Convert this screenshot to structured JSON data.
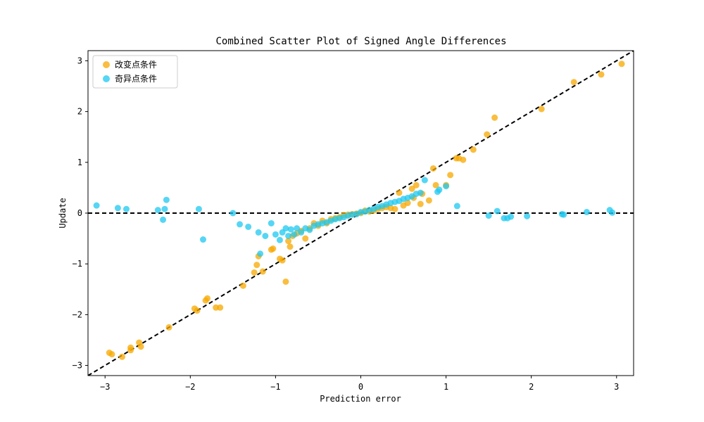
{
  "chart_data": {
    "type": "scatter",
    "title": "Combined Scatter Plot of Signed Angle Differences",
    "xlabel": "Prediction error",
    "ylabel": "Update",
    "xlim": [
      -3.2,
      3.2
    ],
    "ylim": [
      -3.2,
      3.2
    ],
    "xticks": [
      -3,
      -2,
      -1,
      0,
      1,
      2,
      3
    ],
    "yticks": [
      -3,
      -2,
      -1,
      0,
      1,
      2,
      3
    ],
    "tick_labels": [
      "−3",
      "−2",
      "−1",
      "0",
      "1",
      "2",
      "3"
    ],
    "grid": false,
    "legend_position": "top-left",
    "reference_lines": [
      {
        "type": "diagonal",
        "style": "dashed",
        "color": "#000000"
      },
      {
        "type": "horizontal",
        "y": 0,
        "style": "dashed",
        "color": "#000000"
      }
    ],
    "series": [
      {
        "name": "改变点条件",
        "color": "#f7a800",
        "points": [
          [
            -2.95,
            -2.75
          ],
          [
            -2.92,
            -2.78
          ],
          [
            -2.8,
            -2.83
          ],
          [
            -2.7,
            -2.65
          ],
          [
            -2.7,
            -2.7
          ],
          [
            -2.6,
            -2.55
          ],
          [
            -2.58,
            -2.63
          ],
          [
            -2.25,
            -2.25
          ],
          [
            -1.95,
            -1.88
          ],
          [
            -1.92,
            -1.92
          ],
          [
            -1.82,
            -1.72
          ],
          [
            -1.8,
            -1.68
          ],
          [
            -1.7,
            -1.86
          ],
          [
            -1.65,
            -1.86
          ],
          [
            -1.38,
            -1.43
          ],
          [
            -1.25,
            -1.17
          ],
          [
            -1.22,
            -1.02
          ],
          [
            -1.2,
            -0.85
          ],
          [
            -1.15,
            -1.15
          ],
          [
            -1.05,
            -0.72
          ],
          [
            -1.03,
            -0.7
          ],
          [
            -0.95,
            -0.9
          ],
          [
            -0.92,
            -0.93
          ],
          [
            -0.88,
            -1.35
          ],
          [
            -0.85,
            -0.55
          ],
          [
            -0.83,
            -0.66
          ],
          [
            -0.8,
            -0.45
          ],
          [
            -0.75,
            -0.4
          ],
          [
            -0.7,
            -0.35
          ],
          [
            -0.65,
            -0.5
          ],
          [
            -0.6,
            -0.3
          ],
          [
            -0.55,
            -0.2
          ],
          [
            -0.5,
            -0.25
          ],
          [
            -0.45,
            -0.15
          ],
          [
            -0.4,
            -0.2
          ],
          [
            -0.35,
            -0.12
          ],
          [
            -0.3,
            -0.1
          ],
          [
            -0.25,
            -0.08
          ],
          [
            -0.2,
            -0.04
          ],
          [
            -0.15,
            -0.03
          ],
          [
            -0.1,
            -0.02
          ],
          [
            -0.05,
            -0.01
          ],
          [
            0.0,
            0.0
          ],
          [
            0.05,
            0.05
          ],
          [
            0.1,
            0.03
          ],
          [
            0.15,
            0.05
          ],
          [
            0.2,
            0.08
          ],
          [
            0.25,
            0.1
          ],
          [
            0.3,
            0.12
          ],
          [
            0.35,
            0.1
          ],
          [
            0.4,
            0.08
          ],
          [
            0.45,
            0.4
          ],
          [
            0.5,
            0.15
          ],
          [
            0.55,
            0.2
          ],
          [
            0.6,
            0.48
          ],
          [
            0.62,
            0.3
          ],
          [
            0.65,
            0.55
          ],
          [
            0.7,
            0.18
          ],
          [
            0.72,
            0.38
          ],
          [
            0.8,
            0.25
          ],
          [
            0.85,
            0.88
          ],
          [
            0.88,
            0.55
          ],
          [
            1.0,
            0.55
          ],
          [
            1.05,
            0.75
          ],
          [
            1.12,
            1.08
          ],
          [
            1.15,
            1.08
          ],
          [
            1.2,
            1.05
          ],
          [
            1.32,
            1.25
          ],
          [
            1.48,
            1.55
          ],
          [
            1.57,
            1.88
          ],
          [
            2.12,
            2.05
          ],
          [
            2.5,
            2.58
          ],
          [
            2.82,
            2.73
          ],
          [
            3.06,
            2.94
          ]
        ]
      },
      {
        "name": "奇异点条件",
        "color": "#1ec8f0",
        "points": [
          [
            -3.1,
            0.15
          ],
          [
            -2.85,
            0.1
          ],
          [
            -2.75,
            0.08
          ],
          [
            -2.38,
            0.06
          ],
          [
            -2.32,
            -0.13
          ],
          [
            -2.3,
            0.08
          ],
          [
            -2.28,
            0.26
          ],
          [
            -1.9,
            0.08
          ],
          [
            -1.85,
            -0.52
          ],
          [
            -1.5,
            0.0
          ],
          [
            -1.42,
            -0.22
          ],
          [
            -1.32,
            -0.27
          ],
          [
            -1.2,
            -0.38
          ],
          [
            -1.18,
            -0.8
          ],
          [
            -1.12,
            -0.45
          ],
          [
            -1.05,
            -0.2
          ],
          [
            -1.0,
            -0.42
          ],
          [
            -0.95,
            -0.53
          ],
          [
            -0.92,
            -0.38
          ],
          [
            -0.88,
            -0.3
          ],
          [
            -0.85,
            -0.45
          ],
          [
            -0.82,
            -0.32
          ],
          [
            -0.78,
            -0.42
          ],
          [
            -0.75,
            -0.3
          ],
          [
            -0.7,
            -0.38
          ],
          [
            -0.65,
            -0.3
          ],
          [
            -0.6,
            -0.33
          ],
          [
            -0.55,
            -0.25
          ],
          [
            -0.5,
            -0.22
          ],
          [
            -0.45,
            -0.2
          ],
          [
            -0.4,
            -0.18
          ],
          [
            -0.35,
            -0.15
          ],
          [
            -0.3,
            -0.12
          ],
          [
            -0.25,
            -0.1
          ],
          [
            -0.2,
            -0.08
          ],
          [
            -0.15,
            -0.05
          ],
          [
            -0.1,
            -0.03
          ],
          [
            -0.05,
            -0.02
          ],
          [
            0.0,
            0.02
          ],
          [
            0.05,
            0.03
          ],
          [
            0.1,
            0.06
          ],
          [
            0.15,
            0.08
          ],
          [
            0.2,
            0.12
          ],
          [
            0.25,
            0.14
          ],
          [
            0.3,
            0.17
          ],
          [
            0.35,
            0.2
          ],
          [
            0.4,
            0.22
          ],
          [
            0.45,
            0.24
          ],
          [
            0.5,
            0.28
          ],
          [
            0.55,
            0.3
          ],
          [
            0.6,
            0.33
          ],
          [
            0.65,
            0.38
          ],
          [
            0.7,
            0.4
          ],
          [
            0.75,
            0.65
          ],
          [
            0.9,
            0.42
          ],
          [
            0.92,
            0.46
          ],
          [
            1.0,
            0.53
          ],
          [
            1.13,
            0.14
          ],
          [
            1.5,
            -0.05
          ],
          [
            1.6,
            0.04
          ],
          [
            1.68,
            -0.1
          ],
          [
            1.72,
            -0.1
          ],
          [
            1.76,
            -0.07
          ],
          [
            1.95,
            -0.06
          ],
          [
            2.36,
            -0.02
          ],
          [
            2.38,
            -0.03
          ],
          [
            2.65,
            0.02
          ],
          [
            2.92,
            0.06
          ],
          [
            2.95,
            0.01
          ]
        ]
      }
    ]
  }
}
